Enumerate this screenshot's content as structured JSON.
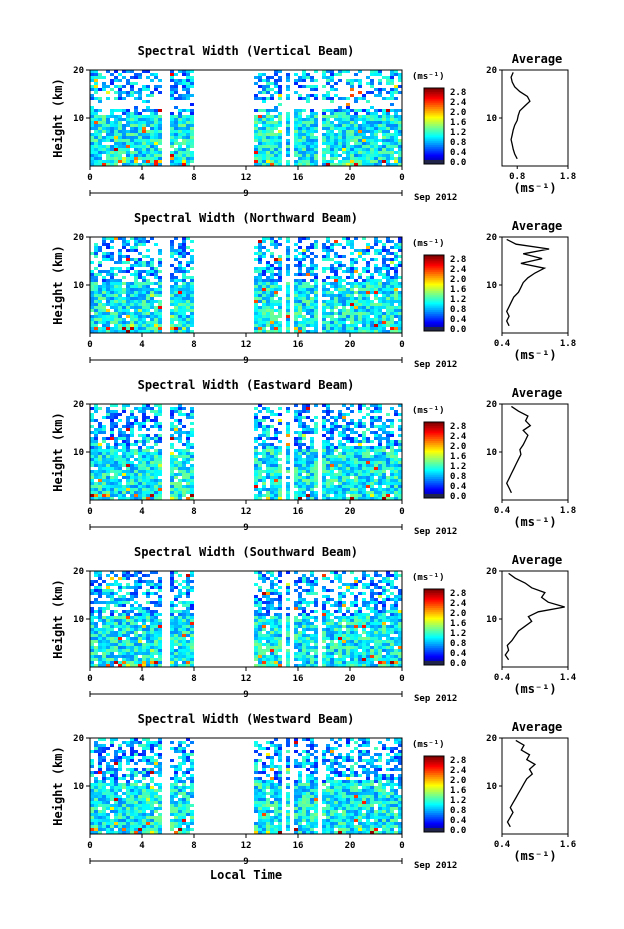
{
  "chart_data": [
    {
      "type": "heatmap",
      "title": "Spectral Width (Vertical Beam)",
      "ylabel": "Height (km)",
      "xticks": [
        "0",
        "4",
        "8",
        "12",
        "16",
        "20",
        "0"
      ],
      "yticks": [
        "20",
        "10"
      ],
      "date_label": "9",
      "date_suffix": "Sep 2012",
      "colorbar": {
        "unit": "(ms⁻¹)",
        "ticks": [
          "2.8",
          "2.4",
          "2.0",
          "1.6",
          "1.2",
          "0.8",
          "0.4",
          "0.0"
        ]
      },
      "average": {
        "title": "Average",
        "xlabel": "(ms⁻¹)",
        "xticks": [
          "0.8",
          "1.8"
        ],
        "xlim": [
          0.5,
          1.8
        ],
        "yticks": [
          "20",
          "10"
        ],
        "profile": [
          [
            0.8,
            1.5
          ],
          [
            0.75,
            2.5
          ],
          [
            0.72,
            3.5
          ],
          [
            0.7,
            4.5
          ],
          [
            0.68,
            5.5
          ],
          [
            0.7,
            6.5
          ],
          [
            0.72,
            7.5
          ],
          [
            0.75,
            8.5
          ],
          [
            0.8,
            9.5
          ],
          [
            0.82,
            10.5
          ],
          [
            0.85,
            11.5
          ],
          [
            0.95,
            12.5
          ],
          [
            1.05,
            13.5
          ],
          [
            1.0,
            14.5
          ],
          [
            0.85,
            15.5
          ],
          [
            0.75,
            16.5
          ],
          [
            0.7,
            17.5
          ],
          [
            0.68,
            18.5
          ],
          [
            0.72,
            19.5
          ]
        ]
      }
    },
    {
      "type": "heatmap",
      "title": "Spectral Width (Northward Beam)",
      "ylabel": "Height (km)",
      "xticks": [
        "0",
        "4",
        "8",
        "12",
        "16",
        "20",
        "0"
      ],
      "yticks": [
        "20",
        "10"
      ],
      "date_label": "9",
      "date_suffix": "Sep 2012",
      "colorbar": {
        "unit": "(ms⁻¹)",
        "ticks": [
          "2.8",
          "2.4",
          "2.0",
          "1.6",
          "1.2",
          "0.8",
          "0.4",
          "0.0"
        ]
      },
      "average": {
        "title": "Average",
        "xlabel": "(ms⁻¹)",
        "xticks": [
          "0.4",
          "1.8"
        ],
        "xlim": [
          0.4,
          1.8
        ],
        "yticks": [
          "20",
          "10"
        ],
        "profile": [
          [
            0.55,
            1.5
          ],
          [
            0.5,
            2.5
          ],
          [
            0.55,
            3.5
          ],
          [
            0.5,
            4.5
          ],
          [
            0.55,
            5.5
          ],
          [
            0.6,
            6.5
          ],
          [
            0.65,
            7.5
          ],
          [
            0.75,
            8.5
          ],
          [
            0.8,
            9.5
          ],
          [
            0.85,
            10.5
          ],
          [
            0.95,
            11.5
          ],
          [
            1.1,
            12.5
          ],
          [
            1.3,
            13.5
          ],
          [
            0.8,
            14.5
          ],
          [
            1.25,
            15.5
          ],
          [
            0.85,
            16.5
          ],
          [
            1.4,
            17.5
          ],
          [
            0.7,
            18.5
          ],
          [
            0.5,
            19.5
          ]
        ]
      }
    },
    {
      "type": "heatmap",
      "title": "Spectral Width (Eastward Beam)",
      "ylabel": "Height (km)",
      "xticks": [
        "0",
        "4",
        "8",
        "12",
        "16",
        "20",
        "0"
      ],
      "yticks": [
        "20",
        "10"
      ],
      "date_label": "9",
      "date_suffix": "Sep 2012",
      "colorbar": {
        "unit": "(ms⁻¹)",
        "ticks": [
          "2.8",
          "2.4",
          "2.0",
          "1.6",
          "1.2",
          "0.8",
          "0.4",
          "0.0"
        ]
      },
      "average": {
        "title": "Average",
        "xlabel": "(ms⁻¹)",
        "xticks": [
          "0.4",
          "1.8"
        ],
        "xlim": [
          0.4,
          1.8
        ],
        "yticks": [
          "20",
          "10"
        ],
        "profile": [
          [
            0.6,
            1.5
          ],
          [
            0.55,
            2.5
          ],
          [
            0.5,
            3.5
          ],
          [
            0.55,
            4.5
          ],
          [
            0.6,
            5.5
          ],
          [
            0.65,
            6.5
          ],
          [
            0.7,
            7.5
          ],
          [
            0.75,
            8.5
          ],
          [
            0.8,
            9.5
          ],
          [
            0.78,
            10.5
          ],
          [
            0.85,
            11.5
          ],
          [
            0.9,
            12.5
          ],
          [
            0.95,
            13.5
          ],
          [
            0.85,
            14.5
          ],
          [
            1.0,
            15.5
          ],
          [
            0.9,
            16.5
          ],
          [
            0.95,
            17.5
          ],
          [
            0.75,
            18.5
          ],
          [
            0.6,
            19.5
          ]
        ]
      }
    },
    {
      "type": "heatmap",
      "title": "Spectral Width (Southward Beam)",
      "ylabel": "Height (km)",
      "xticks": [
        "0",
        "4",
        "8",
        "12",
        "16",
        "20",
        "0"
      ],
      "yticks": [
        "20",
        "10"
      ],
      "date_label": "9",
      "date_suffix": "Sep 2012",
      "colorbar": {
        "unit": "(ms⁻¹)",
        "ticks": [
          "2.8",
          "2.4",
          "2.0",
          "1.6",
          "1.2",
          "0.8",
          "0.4",
          "0.0"
        ]
      },
      "average": {
        "title": "Average",
        "xlabel": "(ms⁻¹)",
        "xticks": [
          "0.4",
          "1.4"
        ],
        "xlim": [
          0.4,
          1.4
        ],
        "yticks": [
          "20",
          "10"
        ],
        "profile": [
          [
            0.5,
            1.5
          ],
          [
            0.45,
            2.5
          ],
          [
            0.5,
            3.5
          ],
          [
            0.48,
            4.5
          ],
          [
            0.55,
            5.5
          ],
          [
            0.6,
            6.5
          ],
          [
            0.65,
            7.5
          ],
          [
            0.75,
            8.5
          ],
          [
            0.85,
            9.5
          ],
          [
            0.8,
            10.5
          ],
          [
            0.95,
            11.5
          ],
          [
            1.35,
            12.5
          ],
          [
            1.1,
            13.5
          ],
          [
            1.0,
            14.5
          ],
          [
            1.05,
            15.5
          ],
          [
            0.85,
            16.5
          ],
          [
            0.75,
            17.5
          ],
          [
            0.6,
            18.5
          ],
          [
            0.5,
            19.5
          ]
        ]
      }
    },
    {
      "type": "heatmap",
      "title": "Spectral Width (Westward Beam)",
      "ylabel": "Height (km)",
      "xticks": [
        "0",
        "4",
        "8",
        "12",
        "16",
        "20",
        "0"
      ],
      "yticks": [
        "20",
        "10"
      ],
      "date_label": "9",
      "date_suffix": "Sep 2012",
      "xlabel": "Local Time",
      "colorbar": {
        "unit": "(ms⁻¹)",
        "ticks": [
          "2.8",
          "2.4",
          "2.0",
          "1.6",
          "1.2",
          "0.8",
          "0.4",
          "0.0"
        ]
      },
      "average": {
        "title": "Average",
        "xlabel": "(ms⁻¹)",
        "xticks": [
          "0.4",
          "1.6"
        ],
        "xlim": [
          0.4,
          1.6
        ],
        "yticks": [
          "20",
          "10"
        ],
        "profile": [
          [
            0.55,
            1.5
          ],
          [
            0.5,
            2.5
          ],
          [
            0.55,
            3.5
          ],
          [
            0.6,
            4.5
          ],
          [
            0.55,
            5.5
          ],
          [
            0.6,
            6.5
          ],
          [
            0.65,
            7.5
          ],
          [
            0.7,
            8.5
          ],
          [
            0.75,
            9.5
          ],
          [
            0.8,
            10.5
          ],
          [
            0.85,
            11.5
          ],
          [
            0.95,
            12.5
          ],
          [
            0.9,
            13.5
          ],
          [
            1.0,
            14.5
          ],
          [
            0.85,
            15.5
          ],
          [
            0.9,
            16.5
          ],
          [
            0.75,
            17.5
          ],
          [
            0.8,
            18.5
          ],
          [
            0.65,
            19.5
          ]
        ]
      }
    }
  ]
}
